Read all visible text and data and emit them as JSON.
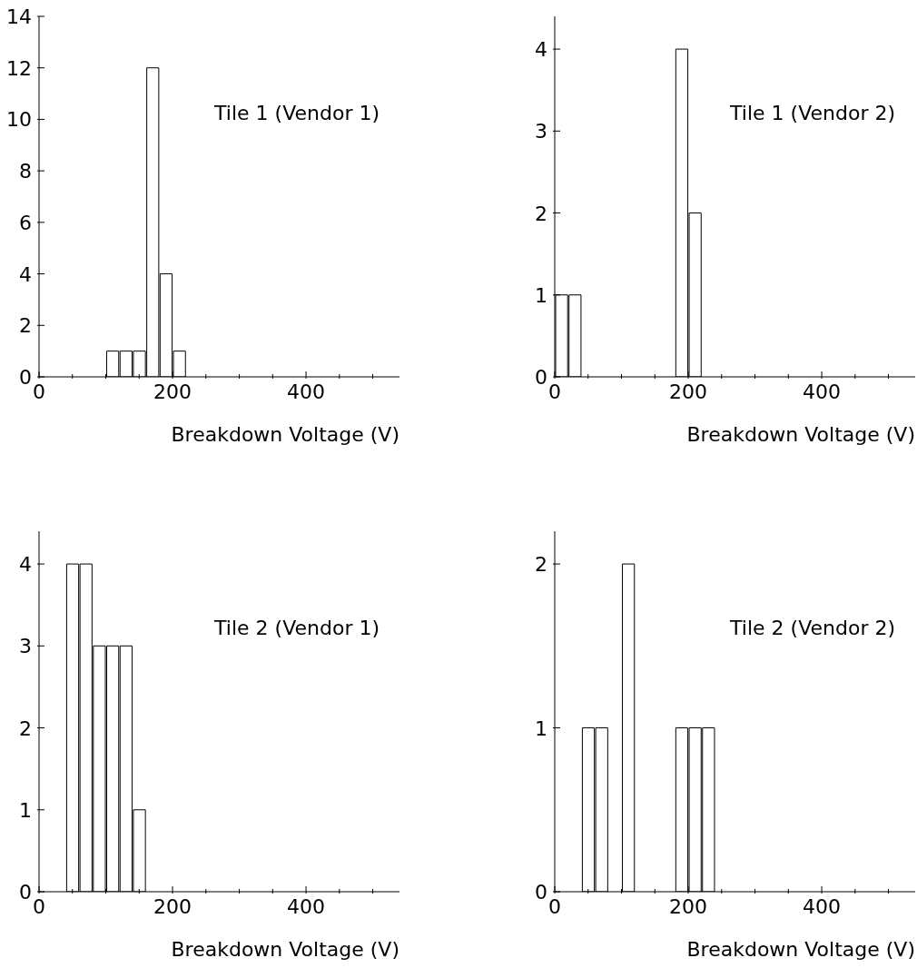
{
  "chart_data": [
    {
      "type": "histogram",
      "xlabel": "Breakdown Voltage (V)",
      "annotations": [
        "Tile 1 (Vendor 1)"
      ],
      "bins": [
        100,
        120,
        140,
        160,
        180,
        200,
        220
      ],
      "values": [
        1,
        1,
        1,
        12,
        4,
        1
      ],
      "color": "#000000",
      "xlim": [
        0,
        540
      ],
      "xticks": [
        0,
        {
          "value": 50,
          "label": null
        },
        {
          "value": 100,
          "label": null
        },
        {
          "value": 150,
          "label": null
        },
        200,
        {
          "value": 250,
          "label": null
        },
        {
          "value": 300,
          "label": null
        },
        {
          "value": 350,
          "label": null
        },
        400,
        {
          "value": 450,
          "label": null
        },
        {
          "value": 500,
          "label": null
        }
      ],
      "ylim": [
        0,
        14
      ],
      "yticks": [
        0,
        2,
        4,
        6,
        8,
        10,
        12,
        14
      ]
    },
    {
      "type": "histogram",
      "xlabel": "Breakdown Voltage (V)",
      "annotations": [
        "Tile 1 (Vendor 2)"
      ],
      "bins": [
        0,
        20,
        40,
        60,
        80,
        100,
        120,
        140,
        160,
        180,
        200,
        220
      ],
      "values": [
        1,
        1,
        0,
        0,
        0,
        0,
        0,
        0,
        0,
        4,
        2
      ],
      "color": "#000000",
      "xlim": [
        0,
        540
      ],
      "xticks": [
        0,
        {
          "value": 50,
          "label": null
        },
        {
          "value": 100,
          "label": null
        },
        {
          "value": 150,
          "label": null
        },
        200,
        {
          "value": 250,
          "label": null
        },
        {
          "value": 300,
          "label": null
        },
        {
          "value": 350,
          "label": null
        },
        400,
        {
          "value": 450,
          "label": null
        },
        {
          "value": 500,
          "label": null
        }
      ],
      "ylim": [
        0,
        4.4
      ],
      "yticks": [
        0,
        1,
        2,
        3,
        4
      ]
    },
    {
      "type": "histogram",
      "xlabel": "Breakdown Voltage (V)",
      "annotations": [
        "Tile 2 (Vendor 1)"
      ],
      "bins": [
        40,
        60,
        80,
        100,
        120,
        140,
        160
      ],
      "values": [
        4,
        4,
        3,
        3,
        3,
        1
      ],
      "color": "#000000",
      "xlim": [
        0,
        540
      ],
      "xticks": [
        0,
        {
          "value": 50,
          "label": null
        },
        {
          "value": 100,
          "label": null
        },
        {
          "value": 150,
          "label": null
        },
        200,
        {
          "value": 250,
          "label": null
        },
        {
          "value": 300,
          "label": null
        },
        {
          "value": 350,
          "label": null
        },
        400,
        {
          "value": 450,
          "label": null
        },
        {
          "value": 500,
          "label": null
        }
      ],
      "ylim": [
        0,
        4.4
      ],
      "yticks": [
        0,
        1,
        2,
        3,
        4
      ]
    },
    {
      "type": "histogram",
      "xlabel": "Breakdown Voltage (V)",
      "annotations": [
        "Tile 2 (Vendor 2)"
      ],
      "bins": [
        40,
        60,
        80,
        100,
        120,
        140,
        160,
        180,
        200,
        220,
        240
      ],
      "values": [
        1,
        1,
        0,
        2,
        0,
        0,
        0,
        1,
        1,
        1
      ],
      "color": "#000000",
      "xlim": [
        0,
        540
      ],
      "xticks": [
        0,
        {
          "value": 50,
          "label": null
        },
        {
          "value": 100,
          "label": null
        },
        {
          "value": 150,
          "label": null
        },
        200,
        {
          "value": 250,
          "label": null
        },
        {
          "value": 300,
          "label": null
        },
        {
          "value": 350,
          "label": null
        },
        400,
        {
          "value": 450,
          "label": null
        },
        {
          "value": 500,
          "label": null
        }
      ],
      "ylim": [
        0,
        2.2
      ],
      "yticks": [
        0,
        1,
        2
      ]
    }
  ]
}
